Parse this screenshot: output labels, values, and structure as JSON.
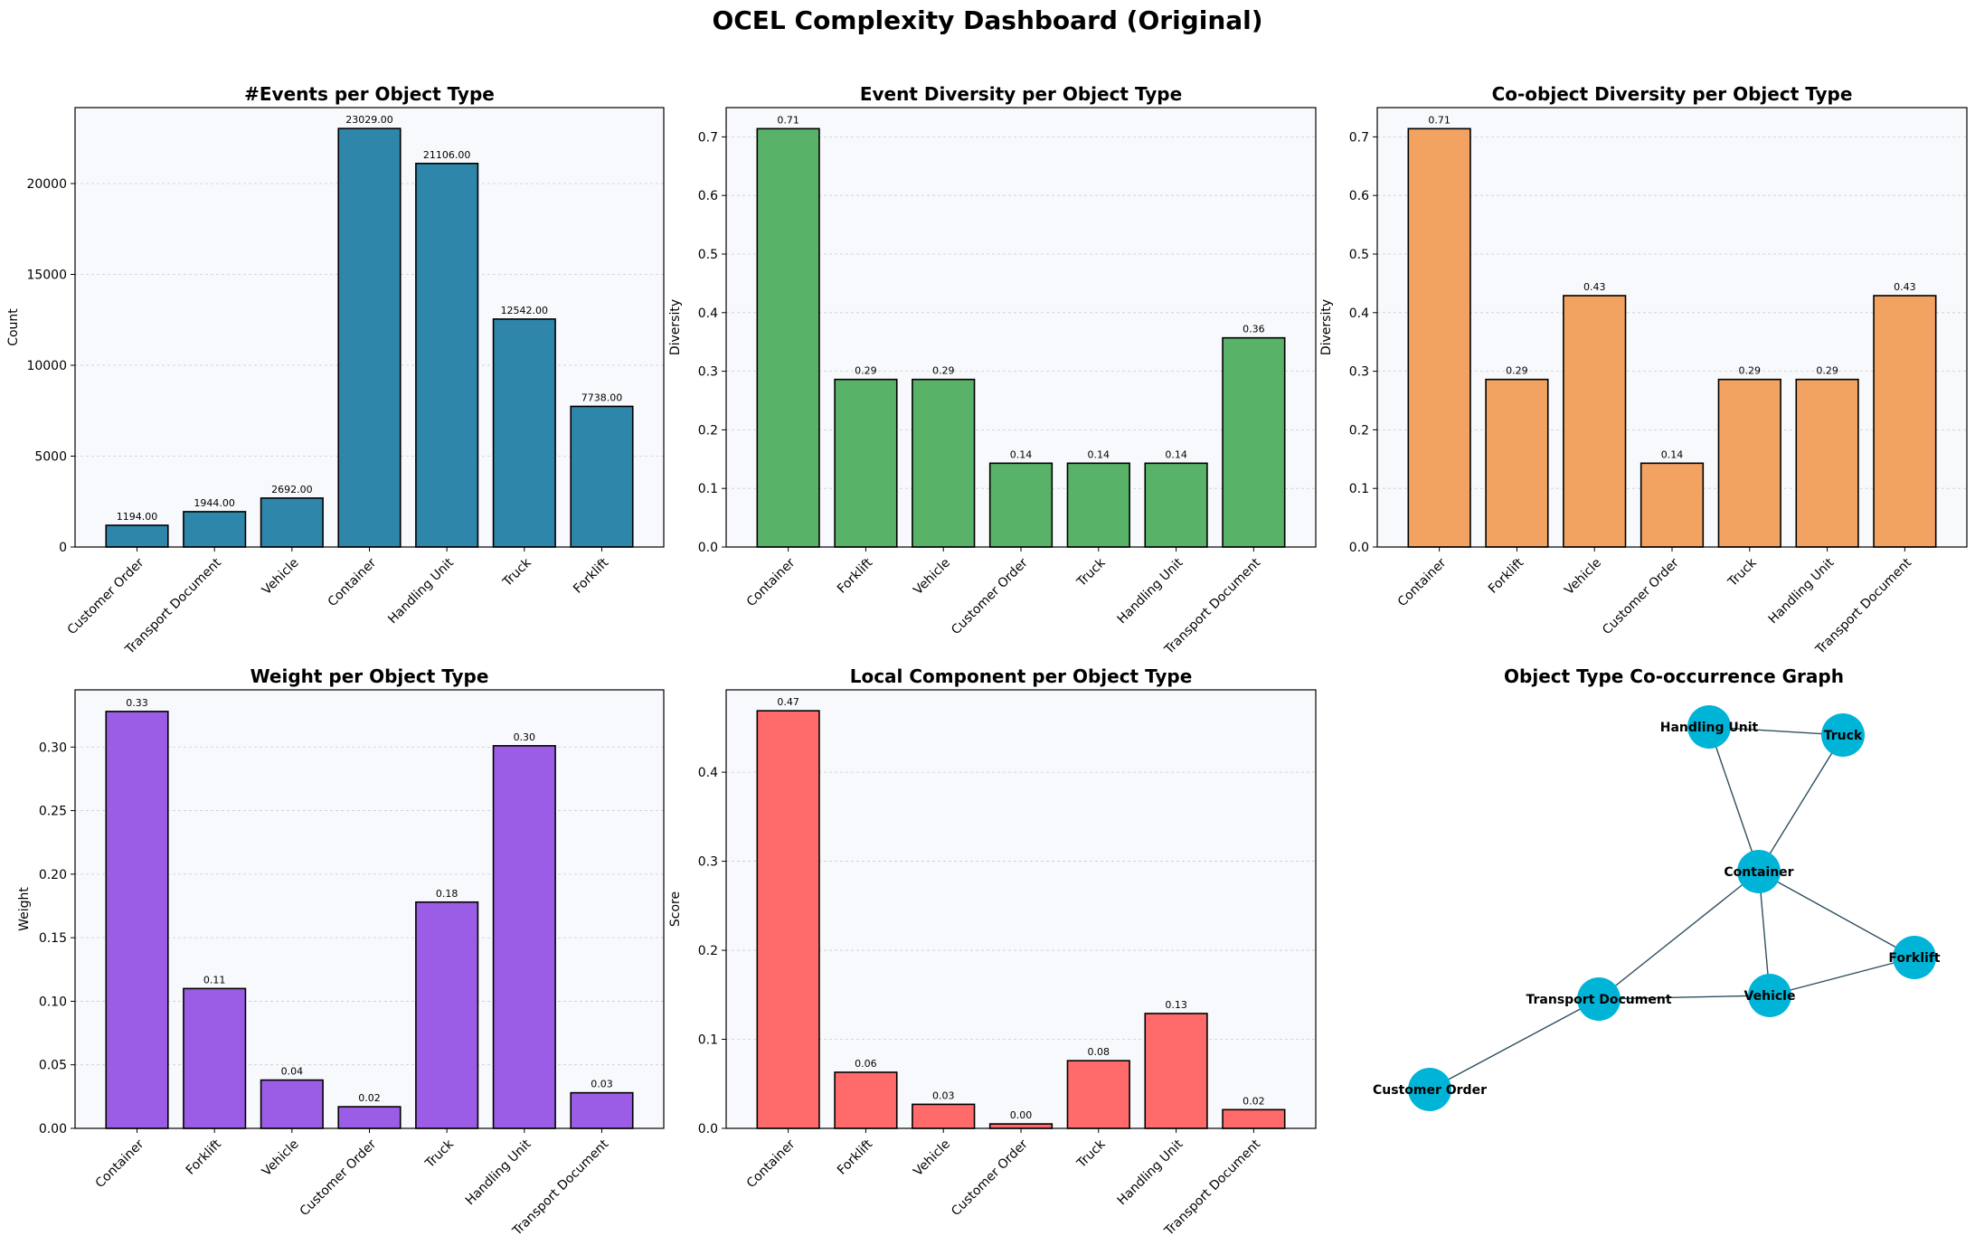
{
  "dashboard_title": "OCEL Complexity Dashboard (Original)",
  "colors": {
    "events": "#2e86ab",
    "event_diversity": "#58b368",
    "coobject_diversity": "#f2a261",
    "weight": "#9b5de5",
    "local_component": "#ff6b6b",
    "node": "#00b4d8",
    "edge": "#2f4f5f",
    "plot_bg": "#f8f9fc"
  },
  "chart_data": [
    {
      "type": "bar",
      "title": "#Events per Object Type",
      "xlabel": "",
      "ylabel": "Count",
      "categories": [
        "Customer Order",
        "Transport Document",
        "Vehicle",
        "Container",
        "Handling Unit",
        "Truck",
        "Forklift"
      ],
      "values": [
        1194,
        1944,
        2692,
        23029,
        21106,
        12542,
        7738
      ],
      "data_labels": [
        "1194.00",
        "1944.00",
        "2692.00",
        "23029.00",
        "21106.00",
        "12542.00",
        "7738.00"
      ],
      "ylim": [
        0,
        24180
      ],
      "yticks": [
        0,
        5000,
        10000,
        15000,
        20000
      ],
      "color_key": "events",
      "grid": true
    },
    {
      "type": "bar",
      "title": "Event Diversity per Object Type",
      "xlabel": "",
      "ylabel": "Diversity",
      "categories": [
        "Container",
        "Forklift",
        "Vehicle",
        "Customer Order",
        "Truck",
        "Handling Unit",
        "Transport Document"
      ],
      "values": [
        0.714,
        0.286,
        0.286,
        0.143,
        0.143,
        0.143,
        0.357
      ],
      "data_labels": [
        "0.71",
        "0.29",
        "0.29",
        "0.14",
        "0.14",
        "0.14",
        "0.36"
      ],
      "ylim": [
        0,
        0.75
      ],
      "yticks": [
        0.0,
        0.1,
        0.2,
        0.3,
        0.4,
        0.5,
        0.6,
        0.7
      ],
      "color_key": "event_diversity",
      "grid": true
    },
    {
      "type": "bar",
      "title": "Co-object Diversity per Object Type",
      "xlabel": "",
      "ylabel": "Diversity",
      "categories": [
        "Container",
        "Forklift",
        "Vehicle",
        "Customer Order",
        "Truck",
        "Handling Unit",
        "Transport Document"
      ],
      "values": [
        0.714,
        0.286,
        0.429,
        0.143,
        0.286,
        0.286,
        0.429
      ],
      "data_labels": [
        "0.71",
        "0.29",
        "0.43",
        "0.14",
        "0.29",
        "0.29",
        "0.43"
      ],
      "ylim": [
        0,
        0.75
      ],
      "yticks": [
        0.0,
        0.1,
        0.2,
        0.3,
        0.4,
        0.5,
        0.6,
        0.7
      ],
      "color_key": "coobject_diversity",
      "grid": true
    },
    {
      "type": "bar",
      "title": "Weight per Object Type",
      "xlabel": "",
      "ylabel": "Weight",
      "categories": [
        "Container",
        "Forklift",
        "Vehicle",
        "Customer Order",
        "Truck",
        "Handling Unit",
        "Transport Document"
      ],
      "values": [
        0.328,
        0.11,
        0.038,
        0.017,
        0.178,
        0.301,
        0.028
      ],
      "data_labels": [
        "0.33",
        "0.11",
        "0.04",
        "0.02",
        "0.18",
        "0.30",
        "0.03"
      ],
      "ylim": [
        0,
        0.345
      ],
      "yticks": [
        0.0,
        0.05,
        0.1,
        0.15,
        0.2,
        0.25,
        0.3
      ],
      "color_key": "weight",
      "grid": true
    },
    {
      "type": "bar",
      "title": "Local Component per Object Type",
      "xlabel": "",
      "ylabel": "Score",
      "categories": [
        "Container",
        "Forklift",
        "Vehicle",
        "Customer Order",
        "Truck",
        "Handling Unit",
        "Transport Document"
      ],
      "values": [
        0.469,
        0.063,
        0.027,
        0.005,
        0.076,
        0.129,
        0.021
      ],
      "data_labels": [
        "0.47",
        "0.06",
        "0.03",
        "0.00",
        "0.08",
        "0.13",
        "0.02"
      ],
      "ylim": [
        0,
        0.4925
      ],
      "yticks": [
        0.0,
        0.1,
        0.2,
        0.3,
        0.4
      ],
      "color_key": "local_component",
      "grid": true
    }
  ],
  "graph": {
    "title": "Object Type Co-occurrence Graph",
    "nodes": [
      {
        "id": "Handling Unit",
        "label": "Handling Unit"
      },
      {
        "id": "Truck",
        "label": "Truck"
      },
      {
        "id": "Container",
        "label": "Container"
      },
      {
        "id": "Forklift",
        "label": "Forklift"
      },
      {
        "id": "Vehicle",
        "label": "Vehicle"
      },
      {
        "id": "Transport Document",
        "label": "Transport Document"
      },
      {
        "id": "Customer Order",
        "label": "Customer Order"
      }
    ],
    "edges": [
      [
        "Handling Unit",
        "Truck"
      ],
      [
        "Handling Unit",
        "Container"
      ],
      [
        "Truck",
        "Container"
      ],
      [
        "Container",
        "Forklift"
      ],
      [
        "Container",
        "Vehicle"
      ],
      [
        "Container",
        "Transport Document"
      ],
      [
        "Vehicle",
        "Forklift"
      ],
      [
        "Transport Document",
        "Vehicle"
      ],
      [
        "Transport Document",
        "Customer Order"
      ]
    ]
  }
}
